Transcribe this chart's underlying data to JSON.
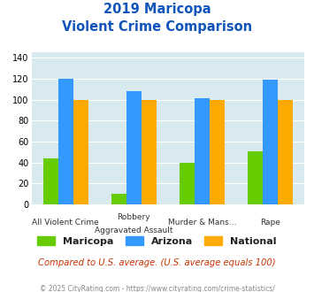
{
  "title_line1": "2019 Maricopa",
  "title_line2": "Violent Crime Comparison",
  "cat_top_labels": [
    "",
    "Robbery",
    "Murder & Mans...",
    ""
  ],
  "cat_bottom_labels": [
    "All Violent Crime",
    "Aggravated Assault",
    "",
    "Rape"
  ],
  "series": {
    "Maricopa": [
      44,
      10,
      40,
      51
    ],
    "Arizona": [
      120,
      108,
      101,
      119
    ],
    "National": [
      100,
      100,
      100,
      100
    ]
  },
  "bar_colors": {
    "Maricopa": "#66cc00",
    "Arizona": "#3399ff",
    "National": "#ffaa00"
  },
  "ylim": [
    0,
    145
  ],
  "yticks": [
    0,
    20,
    40,
    60,
    80,
    100,
    120,
    140
  ],
  "plot_bg": "#d8eaf0",
  "title_color": "#1155bb",
  "subtitle_note": "Compared to U.S. average. (U.S. average equals 100)",
  "subtitle_note_color": "#cc3300",
  "footer": "© 2025 CityRating.com - https://www.cityrating.com/crime-statistics/",
  "footer_color": "#888888",
  "legend_labels": [
    "Maricopa",
    "Arizona",
    "National"
  ]
}
